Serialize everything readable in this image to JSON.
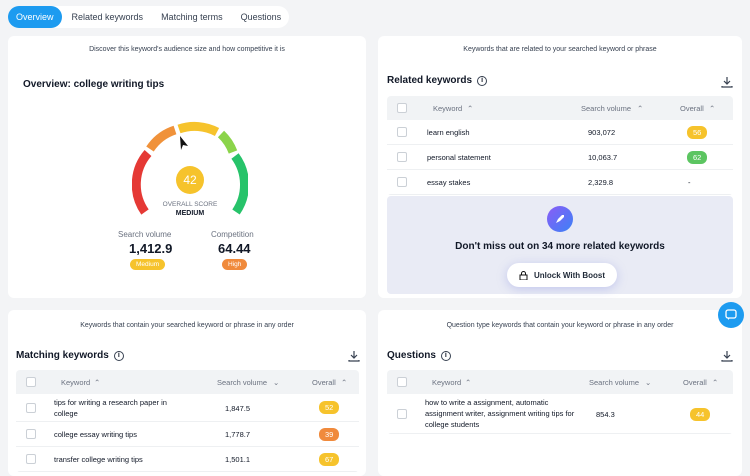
{
  "tabs": [
    "Overview",
    "Related keywords",
    "Matching terms",
    "Questions"
  ],
  "overview": {
    "subtitle": "Discover this keyword's audience size and how competitive it is",
    "title": "Overview: college writing tips",
    "score": "42",
    "score_label": "OVERALL SCORE",
    "score_level": "MEDIUM",
    "search_volume_label": "Search volume",
    "search_volume": "1,412.9",
    "search_volume_badge": "Medium",
    "competition_label": "Competition",
    "competition": "64.44",
    "competition_badge": "High"
  },
  "related": {
    "subtitle": "Keywords that are related to your searched keyword or phrase",
    "title": "Related keywords",
    "columns": [
      "Keyword",
      "Search volume",
      "Overall"
    ],
    "rows": [
      {
        "keyword": "learn english",
        "volume": "903,072",
        "overall": "56"
      },
      {
        "keyword": "personal statement",
        "volume": "10,063.7",
        "overall": "62"
      },
      {
        "keyword": "essay stakes",
        "volume": "2,329.8",
        "overall": "-"
      }
    ],
    "promo_text": "Don't miss out on 34 more related keywords",
    "unlock_label": "Unlock With Boost"
  },
  "matching": {
    "subtitle": "Keywords that contain your searched keyword or phrase in any order",
    "title": "Matching keywords",
    "columns": [
      "Keyword",
      "Search volume",
      "Overall"
    ],
    "rows": [
      {
        "keyword": "tips for writing a research paper in college",
        "volume": "1,847.5",
        "overall": "52"
      },
      {
        "keyword": "college essay writing tips",
        "volume": "1,778.7",
        "overall": "39"
      },
      {
        "keyword": "transfer college writing tips",
        "volume": "1,501.1",
        "overall": "67"
      }
    ]
  },
  "questions": {
    "subtitle": "Question type keywords that contain your keyword or phrase in any order",
    "title": "Questions",
    "columns": [
      "Keyword",
      "Search volume",
      "Overall"
    ],
    "rows": [
      {
        "keyword": "how to write a assignment, automatic assignment writer, assignment writing tips for college students",
        "volume": "854.3",
        "overall": "44"
      }
    ]
  },
  "colors": {
    "accent": "#1d9bf0",
    "gauge_red": "#e53935",
    "gauge_orange": "#f0923a",
    "gauge_yellow": "#f6c32c",
    "gauge_lightgreen": "#8bd44a",
    "gauge_green": "#27c36a",
    "badge_yellow": "#f6c32c",
    "badge_orange": "#f08a3c",
    "badge_green": "#5cc561"
  }
}
